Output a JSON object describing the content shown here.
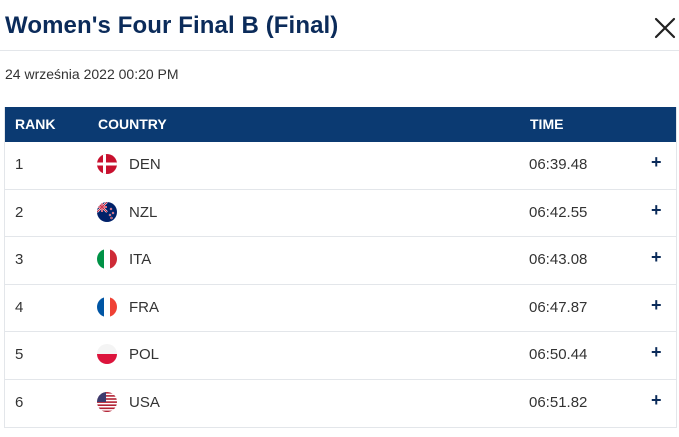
{
  "header": {
    "title": "Women's Four Final B (Final)",
    "close_icon": "close-icon"
  },
  "datetime": "24 września 2022 00:20 PM",
  "table": {
    "columns": {
      "rank": "RANK",
      "country": "COUNTRY",
      "time": "TIME"
    },
    "rows": [
      {
        "rank": "1",
        "country": "DEN",
        "time": "06:39.48",
        "flag": "den-flag-icon",
        "expand": "+"
      },
      {
        "rank": "2",
        "country": "NZL",
        "time": "06:42.55",
        "flag": "nzl-flag-icon",
        "expand": "+"
      },
      {
        "rank": "3",
        "country": "ITA",
        "time": "06:43.08",
        "flag": "ita-flag-icon",
        "expand": "+"
      },
      {
        "rank": "4",
        "country": "FRA",
        "time": "06:47.87",
        "flag": "fra-flag-icon",
        "expand": "+"
      },
      {
        "rank": "5",
        "country": "POL",
        "time": "06:50.44",
        "flag": "pol-flag-icon",
        "expand": "+"
      },
      {
        "rank": "6",
        "country": "USA",
        "time": "06:51.82",
        "flag": "usa-flag-icon",
        "expand": "+"
      }
    ]
  },
  "colors": {
    "header_bg": "#0b3a72",
    "title": "#0b2b5a"
  }
}
